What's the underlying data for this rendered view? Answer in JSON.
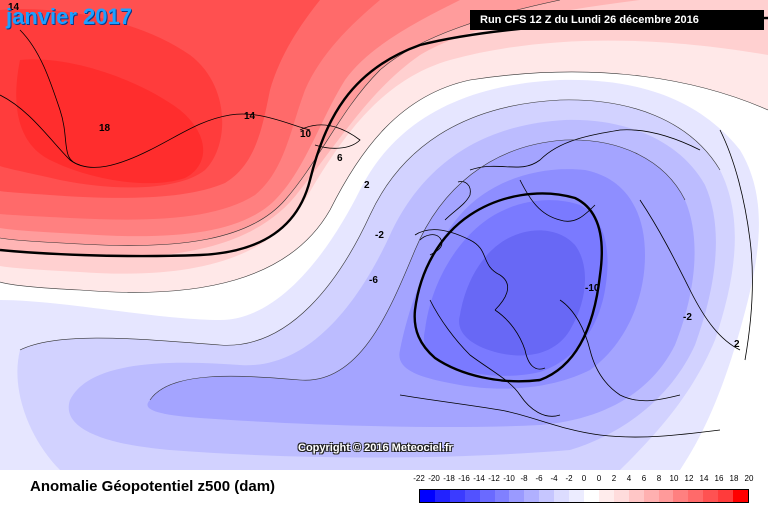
{
  "header": {
    "title": "janvier 2017",
    "run_info": "Run CFS 12 Z du Lundi 26 décembre 2016"
  },
  "map": {
    "copyright": "Copyright © 2016 Meteociel.fr",
    "contour_labels": [
      "14",
      "18",
      "14",
      "10",
      "6",
      "2",
      "-2",
      "-6",
      "-10",
      "-2",
      "2"
    ]
  },
  "footer": {
    "title": "Anomalie Géopotentiel z500 (dam)"
  },
  "legend": {
    "ticks": [
      "-22",
      "-20",
      "-18",
      "-16",
      "-14",
      "-12",
      "-10",
      "-8",
      "-6",
      "-4",
      "-2",
      "0",
      "0",
      "2",
      "4",
      "6",
      "8",
      "10",
      "12",
      "14",
      "16",
      "18",
      "20"
    ],
    "colors": [
      "#0000ff",
      "#2222ff",
      "#3b3bff",
      "#5252ff",
      "#6a6aff",
      "#8080ff",
      "#9a9aff",
      "#b0b0ff",
      "#c6c6ff",
      "#dcdcff",
      "#ececff",
      "#ffffff",
      "#ffecec",
      "#ffdcdc",
      "#ffc6c6",
      "#ffb0b0",
      "#ff9a9a",
      "#ff8080",
      "#ff6a6a",
      "#ff5252",
      "#ff3b3b",
      "#ff0000"
    ]
  }
}
